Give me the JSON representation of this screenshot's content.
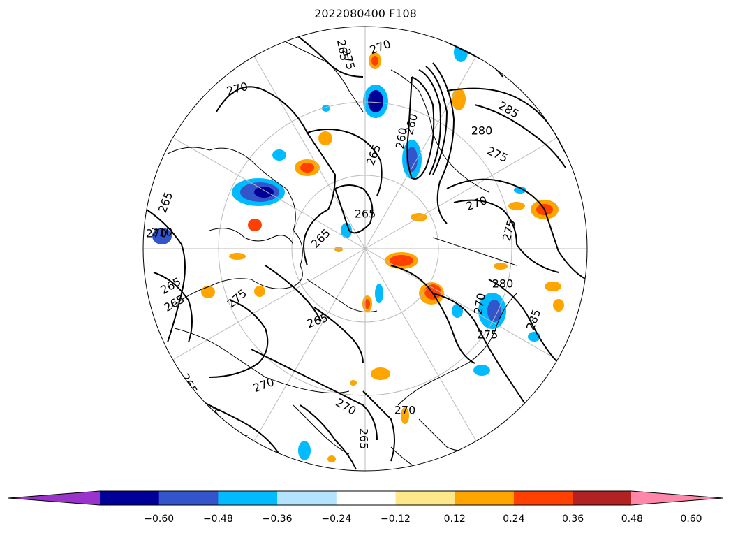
{
  "title": "2022080400 F108",
  "map": {
    "projection": "north polar stereographic",
    "contour_labels": [
      "270",
      "275",
      "260",
      "265",
      "270",
      "285",
      "280",
      "275",
      "270",
      "275",
      "280",
      "285",
      "265",
      "260",
      "265",
      "265",
      "265",
      "270",
      "275",
      "270",
      "265",
      "265",
      "270",
      "275",
      "265",
      "265",
      "265",
      "270",
      "265",
      "270",
      "275",
      "210"
    ]
  },
  "colorbar": {
    "ticks": [
      "−0.60",
      "−0.48",
      "−0.36",
      "−0.24",
      "−0.12",
      "0.12",
      "0.24",
      "0.36",
      "0.48",
      "0.60"
    ],
    "colors": [
      "#9933cc",
      "#000099",
      "#3355cc",
      "#00bbff",
      "#b3e3ff",
      "#ffffff",
      "#ffe88a",
      "#ffa500",
      "#ff4000",
      "#b22222",
      "#ff88aa"
    ],
    "extend": "both"
  }
}
